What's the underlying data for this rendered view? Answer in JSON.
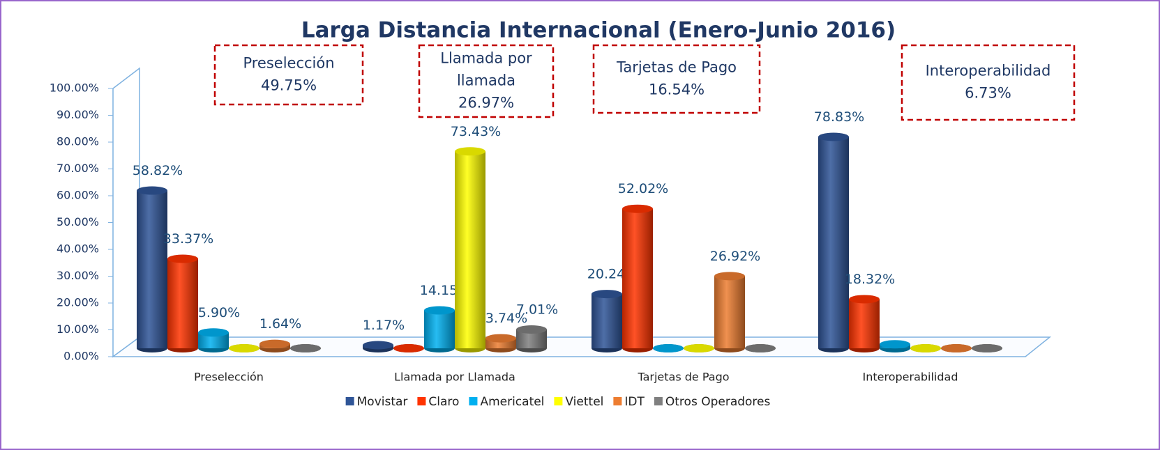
{
  "chart_data": {
    "type": "bar",
    "title": "Larga Distancia Internacional (Enero-Junio 2016)",
    "categories": [
      "Preselección",
      "Llamada por Llamada",
      "Tarjetas de Pago",
      "Interoperabilidad"
    ],
    "series": [
      {
        "name": "Movistar",
        "color": "#2f5597",
        "values": [
          58.82,
          1.17,
          20.24,
          78.83
        ],
        "value_labels": [
          "58.82%",
          "1.17%",
          "20.24%",
          "78.83%"
        ]
      },
      {
        "name": "Claro",
        "color": "#ff3300",
        "values": [
          33.37,
          0,
          52.02,
          18.32
        ],
        "value_labels": [
          "33.37%",
          null,
          "52.02%",
          "18.32%"
        ]
      },
      {
        "name": "Americatel",
        "color": "#00b0f0",
        "values": [
          5.9,
          14.15,
          0,
          1.5
        ],
        "value_labels": [
          "5.90%",
          "14.15%",
          null,
          null
        ]
      },
      {
        "name": "Viettel",
        "color": "#ffff00",
        "values": [
          0,
          73.43,
          0,
          0
        ],
        "value_labels": [
          null,
          "73.43%",
          null,
          null
        ]
      },
      {
        "name": "IDT",
        "color": "#ed7d31",
        "values": [
          1.64,
          3.74,
          26.92,
          0
        ],
        "value_labels": [
          "1.64%",
          "3.74%",
          "26.92%",
          null
        ]
      },
      {
        "name": "Otros Operadores",
        "color": "#7f7f7f",
        "values": [
          0,
          7.01,
          0,
          0
        ],
        "value_labels": [
          null,
          "7.01%",
          null,
          null
        ]
      }
    ],
    "ylim": [
      0,
      100
    ],
    "yticks": [
      {
        "value": 0,
        "label": "0.00%"
      },
      {
        "value": 10,
        "label": "10.00%"
      },
      {
        "value": 20,
        "label": "20.00%"
      },
      {
        "value": 30,
        "label": "30.00%"
      },
      {
        "value": 40,
        "label": "40.00%"
      },
      {
        "value": 50,
        "label": "50.00%"
      },
      {
        "value": 60,
        "label": "60.00%"
      },
      {
        "value": 70,
        "label": "70.00%"
      },
      {
        "value": 80,
        "label": "80.00%"
      },
      {
        "value": 90,
        "label": "90.00%"
      },
      {
        "value": 100,
        "label": "100.00%"
      }
    ],
    "legend": "bottom",
    "annotations": [
      {
        "lines": [
          "Preselección",
          "49.75%"
        ]
      },
      {
        "lines": [
          "Llamada por",
          "llamada",
          "26.97%"
        ]
      },
      {
        "lines": [
          "Tarjetas de Pago",
          "16.54%"
        ]
      },
      {
        "lines": [
          "Interoperabilidad",
          "6.73%"
        ]
      }
    ]
  }
}
